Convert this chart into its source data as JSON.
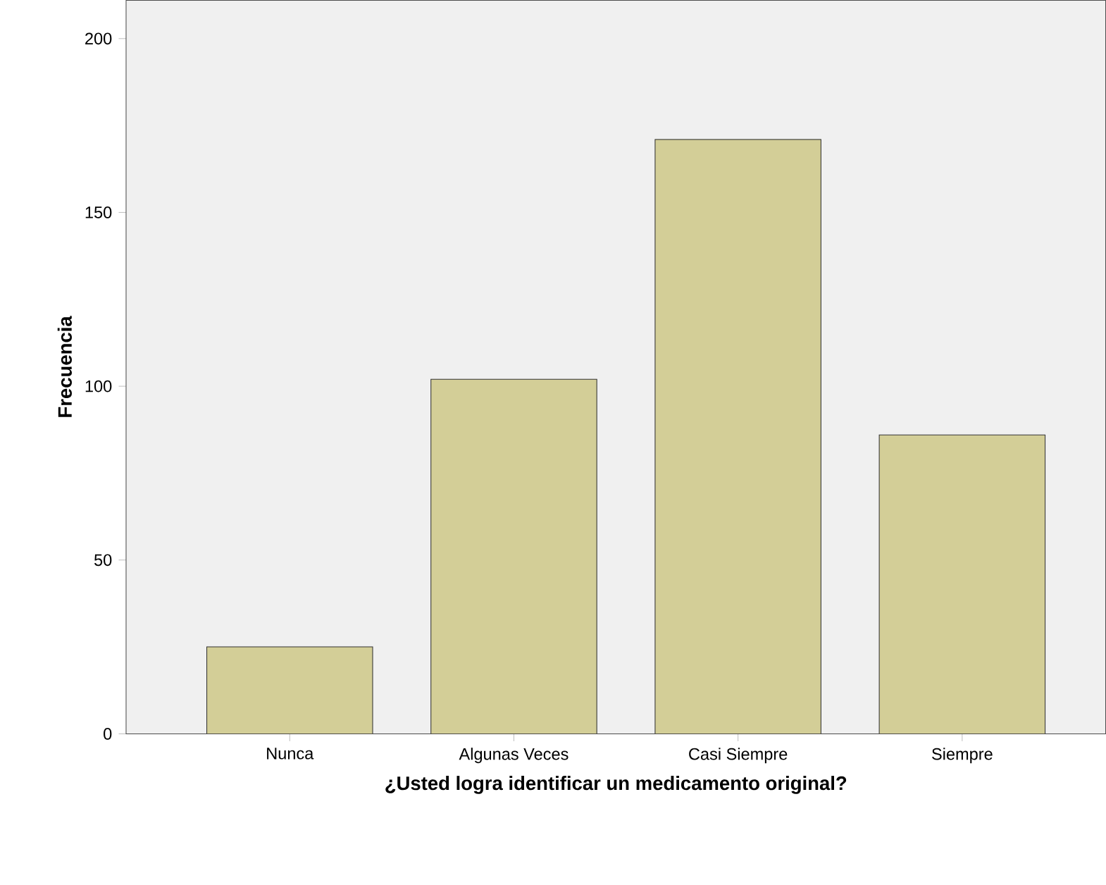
{
  "chart_data": {
    "type": "bar",
    "xlabel": "¿Usted logra identificar un medicamento original?",
    "ylabel": "Frecuencia",
    "categories": [
      "Nunca",
      "Algunas Veces",
      "Casi Siempre",
      "Siempre"
    ],
    "values": [
      25,
      102,
      171,
      86
    ],
    "color": "#d3ce97",
    "ylim": [
      0,
      211
    ],
    "yticks": [
      0,
      50,
      100,
      150,
      200
    ]
  }
}
